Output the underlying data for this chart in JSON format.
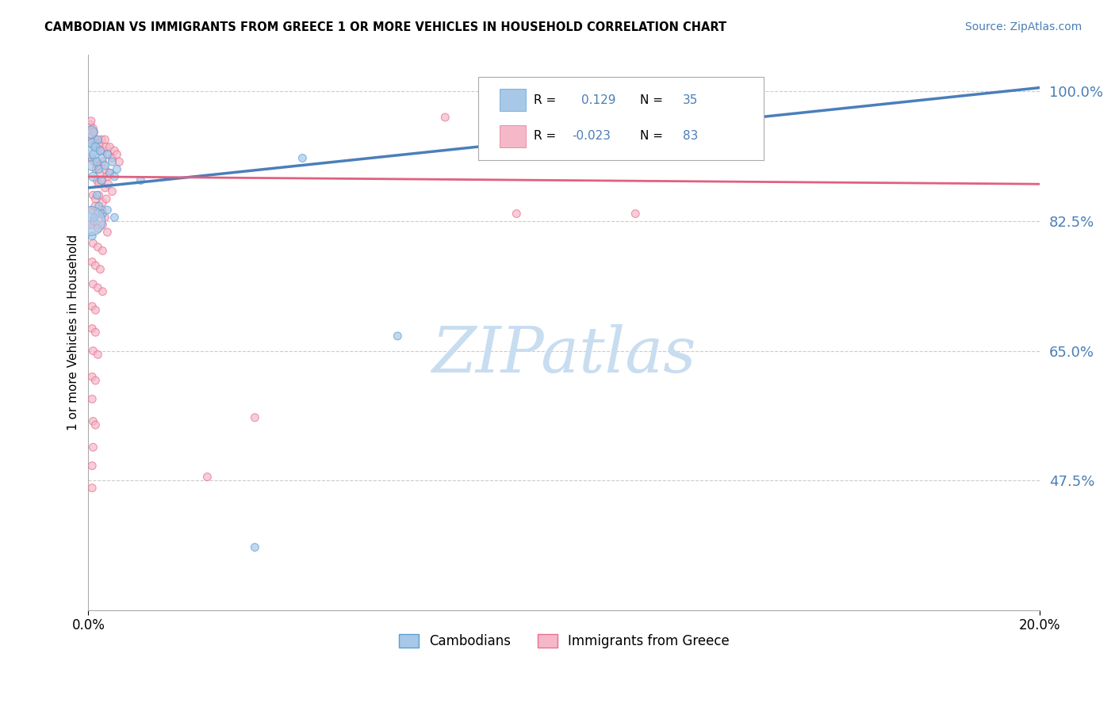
{
  "title": "CAMBODIAN VS IMMIGRANTS FROM GREECE 1 OR MORE VEHICLES IN HOUSEHOLD CORRELATION CHART",
  "source": "Source: ZipAtlas.com",
  "ylabel": "1 or more Vehicles in Household",
  "xlim": [
    0.0,
    20.0
  ],
  "ylim": [
    30.0,
    105.0
  ],
  "yticks": [
    47.5,
    65.0,
    82.5,
    100.0
  ],
  "xtick_labels": [
    "0.0%",
    "20.0%"
  ],
  "ytick_labels": [
    "47.5%",
    "65.0%",
    "82.5%",
    "100.0%"
  ],
  "cambodian_color": "#a8c8e8",
  "cambodian_edge": "#5a9fd4",
  "greece_color": "#f4b8c8",
  "greece_edge": "#e87090",
  "blue_line_color": "#4a7fba",
  "pink_line_color": "#e06080",
  "blue_trend": [
    87.0,
    100.5
  ],
  "pink_trend": [
    88.5,
    87.5
  ],
  "background_color": "#ffffff",
  "watermark_text": "ZIPatlas",
  "watermark_color": "#c8ddf0",
  "grid_color": "#cccccc",
  "r_box_lx": 0.42,
  "r_box_ly": 0.82,
  "r_box_lw": 0.28,
  "r_box_lh": 0.13,
  "cambodian_points": [
    [
      0.03,
      92.0,
      200
    ],
    [
      0.06,
      94.5,
      120
    ],
    [
      0.09,
      93.0,
      80
    ],
    [
      0.12,
      91.5,
      70
    ],
    [
      0.08,
      90.0,
      90
    ],
    [
      0.15,
      92.5,
      60
    ],
    [
      0.2,
      93.5,
      50
    ],
    [
      0.25,
      92.0,
      55
    ],
    [
      0.1,
      88.5,
      65
    ],
    [
      0.18,
      90.5,
      55
    ],
    [
      0.3,
      91.0,
      50
    ],
    [
      0.22,
      89.5,
      50
    ],
    [
      0.35,
      90.0,
      50
    ],
    [
      0.4,
      91.5,
      50
    ],
    [
      0.28,
      88.0,
      50
    ],
    [
      0.45,
      89.0,
      50
    ],
    [
      0.5,
      90.5,
      50
    ],
    [
      0.55,
      88.5,
      50
    ],
    [
      0.6,
      89.5,
      50
    ],
    [
      0.18,
      86.0,
      50
    ],
    [
      0.12,
      83.0,
      50
    ],
    [
      0.22,
      84.5,
      50
    ],
    [
      0.3,
      83.5,
      50
    ],
    [
      0.4,
      84.0,
      50
    ],
    [
      0.08,
      80.5,
      50
    ],
    [
      0.55,
      83.0,
      50
    ],
    [
      0.05,
      82.5,
      700
    ],
    [
      1.1,
      88.0,
      50
    ],
    [
      4.5,
      91.0,
      50
    ],
    [
      14.0,
      98.5,
      60
    ],
    [
      6.5,
      67.0,
      50
    ],
    [
      3.5,
      38.5,
      50
    ]
  ],
  "greece_points": [
    [
      0.04,
      95.5,
      50
    ],
    [
      0.06,
      96.0,
      50
    ],
    [
      0.08,
      94.0,
      50
    ],
    [
      0.1,
      95.0,
      50
    ],
    [
      0.05,
      93.0,
      50
    ],
    [
      0.12,
      94.5,
      50
    ],
    [
      0.15,
      93.5,
      50
    ],
    [
      0.18,
      92.5,
      50
    ],
    [
      0.22,
      93.0,
      50
    ],
    [
      0.25,
      92.0,
      50
    ],
    [
      0.28,
      93.5,
      50
    ],
    [
      0.32,
      92.0,
      50
    ],
    [
      0.35,
      93.5,
      50
    ],
    [
      0.38,
      92.5,
      50
    ],
    [
      0.42,
      91.5,
      50
    ],
    [
      0.45,
      92.5,
      50
    ],
    [
      0.5,
      91.0,
      50
    ],
    [
      0.55,
      92.0,
      50
    ],
    [
      0.6,
      91.5,
      50
    ],
    [
      0.65,
      90.5,
      50
    ],
    [
      0.08,
      91.0,
      50
    ],
    [
      0.12,
      90.5,
      50
    ],
    [
      0.16,
      89.5,
      50
    ],
    [
      0.2,
      90.0,
      50
    ],
    [
      0.24,
      89.0,
      50
    ],
    [
      0.3,
      90.5,
      50
    ],
    [
      0.35,
      89.5,
      50
    ],
    [
      0.4,
      88.5,
      50
    ],
    [
      0.45,
      89.0,
      50
    ],
    [
      0.18,
      88.0,
      50
    ],
    [
      0.22,
      87.5,
      50
    ],
    [
      0.28,
      88.0,
      50
    ],
    [
      0.35,
      87.0,
      50
    ],
    [
      0.42,
      87.5,
      50
    ],
    [
      0.5,
      86.5,
      50
    ],
    [
      0.1,
      86.0,
      50
    ],
    [
      0.15,
      85.5,
      50
    ],
    [
      0.22,
      86.0,
      50
    ],
    [
      0.3,
      85.0,
      50
    ],
    [
      0.38,
      85.5,
      50
    ],
    [
      0.08,
      84.0,
      50
    ],
    [
      0.14,
      84.5,
      50
    ],
    [
      0.2,
      83.5,
      50
    ],
    [
      0.28,
      84.0,
      50
    ],
    [
      0.35,
      83.0,
      50
    ],
    [
      0.05,
      82.0,
      50
    ],
    [
      0.12,
      82.5,
      50
    ],
    [
      0.2,
      81.5,
      50
    ],
    [
      0.3,
      82.0,
      50
    ],
    [
      0.4,
      81.0,
      50
    ],
    [
      0.1,
      79.5,
      50
    ],
    [
      0.2,
      79.0,
      50
    ],
    [
      0.3,
      78.5,
      50
    ],
    [
      0.08,
      77.0,
      50
    ],
    [
      0.15,
      76.5,
      50
    ],
    [
      0.25,
      76.0,
      50
    ],
    [
      0.1,
      74.0,
      50
    ],
    [
      0.2,
      73.5,
      50
    ],
    [
      0.3,
      73.0,
      50
    ],
    [
      0.08,
      71.0,
      50
    ],
    [
      0.15,
      70.5,
      50
    ],
    [
      0.08,
      68.0,
      50
    ],
    [
      0.15,
      67.5,
      50
    ],
    [
      0.1,
      65.0,
      50
    ],
    [
      0.2,
      64.5,
      50
    ],
    [
      0.08,
      61.5,
      50
    ],
    [
      0.15,
      61.0,
      50
    ],
    [
      0.08,
      58.5,
      50
    ],
    [
      0.1,
      55.5,
      50
    ],
    [
      0.15,
      55.0,
      50
    ],
    [
      0.1,
      52.0,
      50
    ],
    [
      0.08,
      49.5,
      50
    ],
    [
      3.5,
      56.0,
      50
    ],
    [
      2.5,
      48.0,
      50
    ],
    [
      0.08,
      46.5,
      50
    ],
    [
      9.0,
      83.5,
      50
    ],
    [
      11.5,
      83.5,
      50
    ],
    [
      7.5,
      96.5,
      50
    ]
  ]
}
